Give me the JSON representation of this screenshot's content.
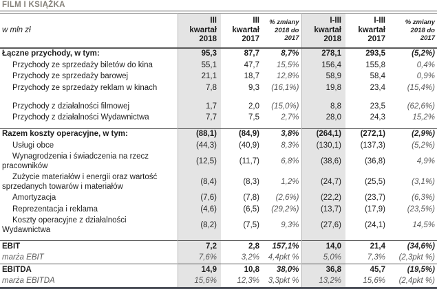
{
  "title": "FILM I KSIĄŻKA",
  "unit_label": "w mln zł",
  "colors": {
    "highlight_column": "#e4e4e4",
    "section_rule": "#595959",
    "light_rule": "#b5b5b5",
    "bottom_rule": "#4b4f58",
    "title_text": "#85817a",
    "muted_text": "#595959"
  },
  "columns": [
    {
      "label": "III\nkwartał\n2018",
      "highlight": true,
      "pct": false
    },
    {
      "label": "III\nkwartał\n2017",
      "highlight": false,
      "pct": false
    },
    {
      "label": "% zmiany\n2018 do\n2017",
      "highlight": false,
      "pct": true
    },
    {
      "label": "I-III\nkwartał\n2018",
      "highlight": true,
      "pct": false
    },
    {
      "label": "I-III\nkwartał\n2017",
      "highlight": false,
      "pct": false
    },
    {
      "label": "% zmiany\n2018 do\n2017",
      "highlight": false,
      "pct": true
    }
  ],
  "rows": [
    {
      "label": "Łączne przychody, w tym:",
      "style": "total",
      "values": [
        "95,3",
        "87,7",
        "8,7%",
        "278,1",
        "293,5",
        "(5,2%)"
      ]
    },
    {
      "label": "Przychody ze sprzedaży biletów do kina",
      "style": "indent",
      "values": [
        "55,1",
        "47,7",
        "15,5%",
        "156,4",
        "155,8",
        "0,4%"
      ]
    },
    {
      "label": "Przychody ze sprzedaży barowej",
      "style": "indent",
      "values": [
        "21,1",
        "18,7",
        "12,8%",
        "58,9",
        "58,4",
        "0,9%"
      ]
    },
    {
      "label": "Przychody ze sprzedaży reklam w kinach",
      "style": "indent",
      "values": [
        "7,8",
        "9,3",
        "(16,1%)",
        "19,8",
        "23,4",
        "(15,4%)"
      ]
    },
    {
      "label": "Przychody z działalności filmowej",
      "style": "indent",
      "gapBefore": true,
      "values": [
        "1,7",
        "2,0",
        "(15,0%)",
        "8,8",
        "23,5",
        "(62,6%)"
      ]
    },
    {
      "label": "Przychody z działalności Wydawnictwa",
      "style": "indent",
      "padBelow": true,
      "values": [
        "7,7",
        "7,5",
        "2,7%",
        "28,0",
        "24,3",
        "15,2%"
      ]
    },
    {
      "label": "Razem koszty operacyjne, w tym:",
      "style": "total",
      "topBorder": true,
      "values": [
        "(88,1)",
        "(84,9)",
        "3,8%",
        "(264,1)",
        "(272,1)",
        "(2,9%)"
      ]
    },
    {
      "label": "Usługi obce",
      "style": "indent",
      "values": [
        "(44,3)",
        "(40,9)",
        "8,3%",
        "(130,1)",
        "(137,3)",
        "(5,2%)"
      ]
    },
    {
      "label": "Wynagrodzenia i świadczenia na rzecz\npracowników",
      "style": "indent",
      "values": [
        "(12,5)",
        "(11,7)",
        "6,8%",
        "(38,6)",
        "(36,8)",
        "4,9%"
      ]
    },
    {
      "label": "Zużycie materiałów i energii oraz wartość\nsprzedanych towarów i materiałów",
      "style": "indent",
      "values": [
        "(8,4)",
        "(8,3)",
        "1,2%",
        "(24,7)",
        "(25,5)",
        "(3,1%)"
      ]
    },
    {
      "label": "Amortyzacja",
      "style": "indent",
      "values": [
        "(7,6)",
        "(7,8)",
        "(2,6%)",
        "(22,2)",
        "(23,7)",
        "(6,3%)"
      ]
    },
    {
      "label": "Reprezentacja i reklama",
      "style": "indent",
      "values": [
        "(4,6)",
        "(6,5)",
        "(29,2%)",
        "(13,7)",
        "(17,9)",
        "(23,5%)"
      ]
    },
    {
      "label": "Koszty operacyjne z działalności\nWydawnictwa",
      "style": "indent",
      "padBelow": true,
      "values": [
        "(8,2)",
        "(7,5)",
        "9,3%",
        "(27,6)",
        "(24,1)",
        "14,5%"
      ]
    },
    {
      "label": "EBIT",
      "style": "total",
      "topBorder": true,
      "values": [
        "7,2",
        "2,8",
        "157,1%",
        "14,0",
        "21,4",
        "(34,6%)"
      ]
    },
    {
      "label": "marża EBIT",
      "style": "margin",
      "values": [
        "7,6%",
        "3,2%",
        "4,4pkt %",
        "5,0%",
        "7,3%",
        "(2,3pkt %)"
      ]
    },
    {
      "label": "EBITDA",
      "style": "total",
      "topBorder": true,
      "values": [
        "14,9",
        "10,8",
        "38,0%",
        "36,8",
        "45,7",
        "(19,5%)"
      ]
    },
    {
      "label": "marża EBITDA",
      "style": "margin",
      "values": [
        "15,6%",
        "12,3%",
        "3,3pkt %",
        "13,2%",
        "15,6%",
        "(2,4pkt %)"
      ]
    }
  ]
}
